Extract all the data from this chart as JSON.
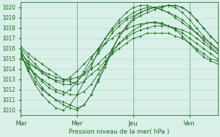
{
  "xlabel": "Pression niveau de la mer( hPa )",
  "ylim": [
    1009.5,
    1020.5
  ],
  "yticks": [
    1010,
    1011,
    1012,
    1013,
    1014,
    1015,
    1016,
    1017,
    1018,
    1019,
    1020
  ],
  "xtick_labels": [
    "Mar",
    "Mer",
    "Jeu",
    "Ven"
  ],
  "xtick_positions": [
    0,
    48,
    96,
    144
  ],
  "xlim": [
    0,
    168
  ],
  "background_color": "#d8f0e8",
  "grid_major_color": "#add8c8",
  "grid_minor_color": "#c8e8d8",
  "line_color": "#1a6618",
  "text_color": "#1a6618",
  "lines": [
    {
      "x": [
        0,
        6,
        12,
        18,
        24,
        30,
        36,
        42,
        48,
        54,
        60,
        66,
        72,
        78,
        84,
        90,
        96,
        102,
        108,
        114,
        120,
        126,
        132,
        138,
        144,
        150,
        156,
        162,
        168
      ],
      "y": [
        1015.5,
        1014.8,
        1014.2,
        1013.6,
        1013.2,
        1012.9,
        1012.8,
        1013.2,
        1013.8,
        1014.5,
        1015.2,
        1015.9,
        1016.5,
        1017.0,
        1017.5,
        1017.9,
        1018.2,
        1018.4,
        1018.5,
        1018.5,
        1018.4,
        1018.2,
        1017.9,
        1017.5,
        1017.0,
        1016.5,
        1016.0,
        1015.5,
        1015.0
      ]
    },
    {
      "x": [
        0,
        6,
        12,
        18,
        24,
        30,
        36,
        42,
        48,
        54,
        60,
        66,
        72,
        78,
        84,
        90,
        96,
        102,
        108,
        114,
        120,
        126,
        132,
        138,
        144,
        150,
        156,
        162,
        168
      ],
      "y": [
        1015.2,
        1014.2,
        1013.5,
        1013.0,
        1012.5,
        1012.0,
        1011.8,
        1011.5,
        1011.5,
        1011.8,
        1012.5,
        1013.5,
        1014.5,
        1015.5,
        1016.5,
        1017.2,
        1017.8,
        1018.2,
        1018.5,
        1018.6,
        1018.5,
        1018.2,
        1017.8,
        1017.2,
        1016.5,
        1015.8,
        1015.2,
        1014.8,
        1014.5
      ]
    },
    {
      "x": [
        0,
        6,
        12,
        18,
        24,
        30,
        36,
        42,
        48,
        54,
        60,
        66,
        72,
        78,
        84,
        90,
        96,
        102,
        108,
        114,
        120,
        126,
        132,
        138,
        144,
        150,
        156,
        162,
        168
      ],
      "y": [
        1015.8,
        1014.5,
        1013.2,
        1012.2,
        1011.5,
        1011.0,
        1010.5,
        1010.2,
        1010.0,
        1010.5,
        1011.5,
        1013.0,
        1014.5,
        1016.0,
        1017.2,
        1018.0,
        1018.8,
        1019.2,
        1019.5,
        1019.8,
        1020.0,
        1020.2,
        1020.2,
        1020.0,
        1019.5,
        1018.8,
        1018.0,
        1017.2,
        1016.5
      ]
    },
    {
      "x": [
        0,
        6,
        12,
        18,
        24,
        30,
        36,
        42,
        48,
        54,
        60,
        66,
        72,
        78,
        84,
        90,
        96,
        102,
        108,
        114,
        120,
        126,
        132,
        138,
        144,
        150,
        156,
        162,
        168
      ],
      "y": [
        1015.5,
        1014.0,
        1012.8,
        1012.0,
        1011.5,
        1011.0,
        1010.8,
        1010.5,
        1010.2,
        1010.5,
        1011.5,
        1012.8,
        1014.2,
        1015.8,
        1017.2,
        1018.2,
        1019.0,
        1019.5,
        1019.8,
        1020.0,
        1020.1,
        1020.2,
        1020.2,
        1020.0,
        1019.5,
        1018.8,
        1018.0,
        1017.2,
        1016.5
      ]
    },
    {
      "x": [
        0,
        6,
        12,
        18,
        24,
        30,
        36,
        42,
        48,
        54,
        60,
        66,
        72,
        78,
        84,
        90,
        96,
        102,
        108,
        114,
        120,
        126,
        132,
        138,
        144,
        150,
        156,
        162,
        168
      ],
      "y": [
        1016.0,
        1015.2,
        1014.5,
        1013.8,
        1013.2,
        1012.8,
        1012.5,
        1012.5,
        1012.8,
        1013.5,
        1014.5,
        1015.5,
        1016.5,
        1017.5,
        1018.2,
        1018.8,
        1019.2,
        1019.5,
        1019.8,
        1020.0,
        1020.1,
        1020.2,
        1020.0,
        1019.5,
        1018.8,
        1018.0,
        1017.2,
        1016.5,
        1015.8
      ]
    },
    {
      "x": [
        0,
        6,
        12,
        18,
        24,
        30,
        36,
        42,
        48,
        54,
        60,
        66,
        72,
        78,
        84,
        90,
        96,
        102,
        108,
        114,
        120,
        126,
        132,
        138,
        144,
        150,
        156,
        162,
        168
      ],
      "y": [
        1015.0,
        1014.5,
        1014.2,
        1013.8,
        1013.5,
        1013.2,
        1013.0,
        1013.0,
        1013.2,
        1013.5,
        1014.0,
        1014.5,
        1015.2,
        1015.8,
        1016.5,
        1017.0,
        1017.5,
        1017.8,
        1018.0,
        1018.2,
        1018.2,
        1018.2,
        1018.0,
        1017.8,
        1017.5,
        1017.0,
        1016.5,
        1016.0,
        1015.5
      ]
    },
    {
      "x": [
        0,
        6,
        12,
        18,
        24,
        30,
        36,
        42,
        48,
        54,
        60,
        66,
        72,
        78,
        84,
        90,
        96,
        102,
        108,
        114,
        120,
        126,
        132,
        138,
        144,
        150,
        156,
        162,
        168
      ],
      "y": [
        1015.5,
        1013.8,
        1012.5,
        1011.5,
        1010.8,
        1010.2,
        1010.0,
        1010.5,
        1011.5,
        1012.8,
        1014.2,
        1015.8,
        1017.0,
        1018.0,
        1018.8,
        1019.5,
        1020.0,
        1020.2,
        1020.2,
        1020.0,
        1019.8,
        1019.5,
        1019.2,
        1018.8,
        1018.2,
        1017.5,
        1016.8,
        1016.2,
        1015.5
      ]
    },
    {
      "x": [
        0,
        6,
        12,
        18,
        24,
        30,
        36,
        42,
        48,
        54,
        60,
        66,
        72,
        78,
        84,
        90,
        96,
        102,
        108,
        114,
        120,
        126,
        132,
        138,
        144,
        150,
        156,
        162,
        168
      ],
      "y": [
        1016.2,
        1015.5,
        1015.0,
        1014.5,
        1014.0,
        1013.5,
        1013.0,
        1012.8,
        1012.5,
        1012.8,
        1013.5,
        1014.0,
        1014.8,
        1015.5,
        1016.0,
        1016.5,
        1017.0,
        1017.2,
        1017.5,
        1017.5,
        1017.5,
        1017.5,
        1017.2,
        1017.0,
        1016.5,
        1016.0,
        1015.5,
        1015.0,
        1014.8
      ]
    },
    {
      "x": [
        0,
        6,
        12,
        18,
        24,
        30,
        36,
        42,
        48,
        54,
        60,
        66,
        72,
        78,
        84,
        90,
        96,
        102,
        108,
        114,
        120,
        126,
        132,
        138,
        144,
        150,
        156,
        162,
        168
      ],
      "y": [
        1015.8,
        1014.5,
        1013.5,
        1012.8,
        1012.2,
        1011.8,
        1011.5,
        1012.0,
        1012.8,
        1013.8,
        1015.0,
        1016.0,
        1017.0,
        1017.8,
        1018.5,
        1019.0,
        1019.5,
        1019.8,
        1020.0,
        1020.0,
        1019.8,
        1019.5,
        1019.0,
        1018.5,
        1018.0,
        1017.5,
        1017.0,
        1016.5,
        1016.0
      ]
    }
  ]
}
